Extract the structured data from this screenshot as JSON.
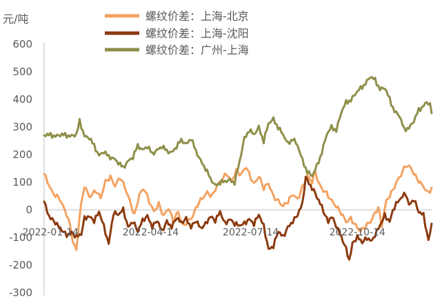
{
  "chart_data": {
    "type": "line",
    "unit_label": "元/吨",
    "ylim": [
      -300,
      600
    ],
    "yticks": [
      -300,
      -200,
      -100,
      0,
      100,
      200,
      300,
      400,
      500,
      600
    ],
    "xlabels": [
      "2022-01-14",
      "2022-04-14",
      "2022-07-14",
      "2022-10-14"
    ],
    "xlabel_positions": [
      4,
      66,
      128,
      194
    ],
    "n_points": 241,
    "legend_position": "top",
    "grid": false,
    "series": [
      {
        "name": "螺纹价差：上海-北京",
        "color": "#F4A261",
        "points": [
          [
            0,
            130
          ],
          [
            5,
            60
          ],
          [
            10,
            40
          ],
          [
            15,
            -30
          ],
          [
            18,
            -120
          ],
          [
            20,
            -150
          ],
          [
            22,
            -20
          ],
          [
            25,
            90
          ],
          [
            28,
            50
          ],
          [
            32,
            70
          ],
          [
            35,
            40
          ],
          [
            38,
            100
          ],
          [
            41,
            120
          ],
          [
            44,
            90
          ],
          [
            47,
            120
          ],
          [
            50,
            80
          ],
          [
            53,
            30
          ],
          [
            56,
            -20
          ],
          [
            59,
            60
          ],
          [
            62,
            80
          ],
          [
            65,
            30
          ],
          [
            68,
            -10
          ],
          [
            71,
            20
          ],
          [
            74,
            -20
          ],
          [
            77,
            10
          ],
          [
            80,
            -40
          ],
          [
            83,
            -10
          ],
          [
            86,
            -60
          ],
          [
            89,
            -40
          ],
          [
            92,
            -20
          ],
          [
            95,
            20
          ],
          [
            98,
            40
          ],
          [
            101,
            60
          ],
          [
            104,
            50
          ],
          [
            107,
            90
          ],
          [
            110,
            110
          ],
          [
            113,
            130
          ],
          [
            116,
            100
          ],
          [
            119,
            140
          ],
          [
            122,
            130
          ],
          [
            125,
            160
          ],
          [
            127,
            130
          ],
          [
            130,
            90
          ],
          [
            133,
            120
          ],
          [
            136,
            80
          ],
          [
            139,
            100
          ],
          [
            142,
            50
          ],
          [
            145,
            30
          ],
          [
            148,
            10
          ],
          [
            151,
            30
          ],
          [
            154,
            60
          ],
          [
            157,
            40
          ],
          [
            160,
            80
          ],
          [
            163,
            120
          ],
          [
            166,
            100
          ],
          [
            168,
            140
          ],
          [
            170,
            100
          ],
          [
            172,
            80
          ],
          [
            175,
            60
          ],
          [
            178,
            30
          ],
          [
            181,
            10
          ],
          [
            184,
            -10
          ],
          [
            187,
            -40
          ],
          [
            190,
            -30
          ],
          [
            193,
            -60
          ],
          [
            196,
            -80
          ],
          [
            199,
            -60
          ],
          [
            202,
            -40
          ],
          [
            205,
            -10
          ],
          [
            207,
            10
          ],
          [
            209,
            -60
          ],
          [
            212,
            30
          ],
          [
            215,
            60
          ],
          [
            218,
            100
          ],
          [
            221,
            130
          ],
          [
            224,
            160
          ],
          [
            227,
            150
          ],
          [
            230,
            120
          ],
          [
            233,
            100
          ],
          [
            236,
            80
          ],
          [
            238,
            60
          ],
          [
            240,
            80
          ]
        ]
      },
      {
        "name": "螺纹价差：上海-沈阳",
        "color": "#8B3A0F",
        "points": [
          [
            0,
            30
          ],
          [
            3,
            -20
          ],
          [
            6,
            -40
          ],
          [
            10,
            -70
          ],
          [
            14,
            -90
          ],
          [
            17,
            -80
          ],
          [
            20,
            -100
          ],
          [
            23,
            -90
          ],
          [
            25,
            -30
          ],
          [
            28,
            -20
          ],
          [
            31,
            -40
          ],
          [
            34,
            -10
          ],
          [
            37,
            -60
          ],
          [
            40,
            -120
          ],
          [
            43,
            -10
          ],
          [
            46,
            -20
          ],
          [
            49,
            0
          ],
          [
            52,
            -60
          ],
          [
            55,
            -40
          ],
          [
            58,
            -80
          ],
          [
            61,
            -40
          ],
          [
            64,
            -20
          ],
          [
            67,
            -60
          ],
          [
            70,
            -40
          ],
          [
            73,
            -80
          ],
          [
            76,
            -40
          ],
          [
            79,
            -60
          ],
          [
            82,
            -30
          ],
          [
            85,
            -50
          ],
          [
            88,
            -30
          ],
          [
            91,
            -60
          ],
          [
            94,
            -40
          ],
          [
            97,
            -70
          ],
          [
            100,
            -50
          ],
          [
            103,
            -20
          ],
          [
            106,
            -40
          ],
          [
            109,
            -10
          ],
          [
            112,
            -50
          ],
          [
            115,
            -30
          ],
          [
            118,
            -50
          ],
          [
            121,
            -60
          ],
          [
            124,
            -50
          ],
          [
            127,
            -30
          ],
          [
            130,
            -50
          ],
          [
            133,
            -20
          ],
          [
            136,
            -60
          ],
          [
            139,
            -140
          ],
          [
            142,
            -130
          ],
          [
            145,
            -80
          ],
          [
            148,
            -100
          ],
          [
            151,
            -60
          ],
          [
            154,
            -40
          ],
          [
            157,
            -20
          ],
          [
            160,
            20
          ],
          [
            162,
            120
          ],
          [
            164,
            100
          ],
          [
            166,
            80
          ],
          [
            168,
            60
          ],
          [
            170,
            30
          ],
          [
            172,
            10
          ],
          [
            174,
            -20
          ],
          [
            176,
            -40
          ],
          [
            178,
            -20
          ],
          [
            181,
            -60
          ],
          [
            184,
            -100
          ],
          [
            187,
            -140
          ],
          [
            189,
            -180
          ],
          [
            191,
            -120
          ],
          [
            194,
            -100
          ],
          [
            197,
            -120
          ],
          [
            200,
            -100
          ],
          [
            203,
            -110
          ],
          [
            205,
            -90
          ],
          [
            208,
            -60
          ],
          [
            211,
            -20
          ],
          [
            214,
            -40
          ],
          [
            216,
            0
          ],
          [
            218,
            20
          ],
          [
            221,
            40
          ],
          [
            224,
            60
          ],
          [
            226,
            20
          ],
          [
            229,
            40
          ],
          [
            232,
            -10
          ],
          [
            235,
            -20
          ],
          [
            238,
            -110
          ],
          [
            240,
            -50
          ]
        ]
      },
      {
        "name": "螺纹价差：广州-上海",
        "color": "#8E8E4A",
        "points": [
          [
            0,
            270
          ],
          [
            5,
            270
          ],
          [
            10,
            270
          ],
          [
            15,
            270
          ],
          [
            20,
            270
          ],
          [
            22,
            320
          ],
          [
            25,
            270
          ],
          [
            28,
            260
          ],
          [
            31,
            230
          ],
          [
            34,
            200
          ],
          [
            37,
            210
          ],
          [
            40,
            190
          ],
          [
            43,
            190
          ],
          [
            46,
            170
          ],
          [
            49,
            150
          ],
          [
            52,
            180
          ],
          [
            55,
            190
          ],
          [
            58,
            230
          ],
          [
            61,
            220
          ],
          [
            64,
            230
          ],
          [
            67,
            200
          ],
          [
            70,
            220
          ],
          [
            73,
            230
          ],
          [
            76,
            210
          ],
          [
            79,
            210
          ],
          [
            82,
            230
          ],
          [
            85,
            250
          ],
          [
            88,
            240
          ],
          [
            91,
            260
          ],
          [
            94,
            210
          ],
          [
            97,
            180
          ],
          [
            100,
            150
          ],
          [
            103,
            110
          ],
          [
            106,
            90
          ],
          [
            109,
            100
          ],
          [
            112,
            100
          ],
          [
            115,
            110
          ],
          [
            118,
            100
          ],
          [
            121,
            170
          ],
          [
            124,
            260
          ],
          [
            127,
            290
          ],
          [
            130,
            270
          ],
          [
            133,
            300
          ],
          [
            136,
            250
          ],
          [
            139,
            310
          ],
          [
            142,
            330
          ],
          [
            145,
            300
          ],
          [
            148,
            270
          ],
          [
            151,
            240
          ],
          [
            154,
            260
          ],
          [
            157,
            230
          ],
          [
            160,
            180
          ],
          [
            163,
            140
          ],
          [
            166,
            120
          ],
          [
            169,
            160
          ],
          [
            172,
            210
          ],
          [
            175,
            270
          ],
          [
            178,
            300
          ],
          [
            181,
            290
          ],
          [
            184,
            350
          ],
          [
            187,
            390
          ],
          [
            190,
            400
          ],
          [
            193,
            420
          ],
          [
            196,
            440
          ],
          [
            199,
            460
          ],
          [
            202,
            480
          ],
          [
            205,
            470
          ],
          [
            208,
            440
          ],
          [
            211,
            440
          ],
          [
            214,
            400
          ],
          [
            217,
            360
          ],
          [
            220,
            340
          ],
          [
            223,
            290
          ],
          [
            226,
            300
          ],
          [
            229,
            320
          ],
          [
            232,
            360
          ],
          [
            235,
            380
          ],
          [
            237,
            390
          ],
          [
            239,
            380
          ],
          [
            240,
            350
          ]
        ]
      }
    ]
  }
}
